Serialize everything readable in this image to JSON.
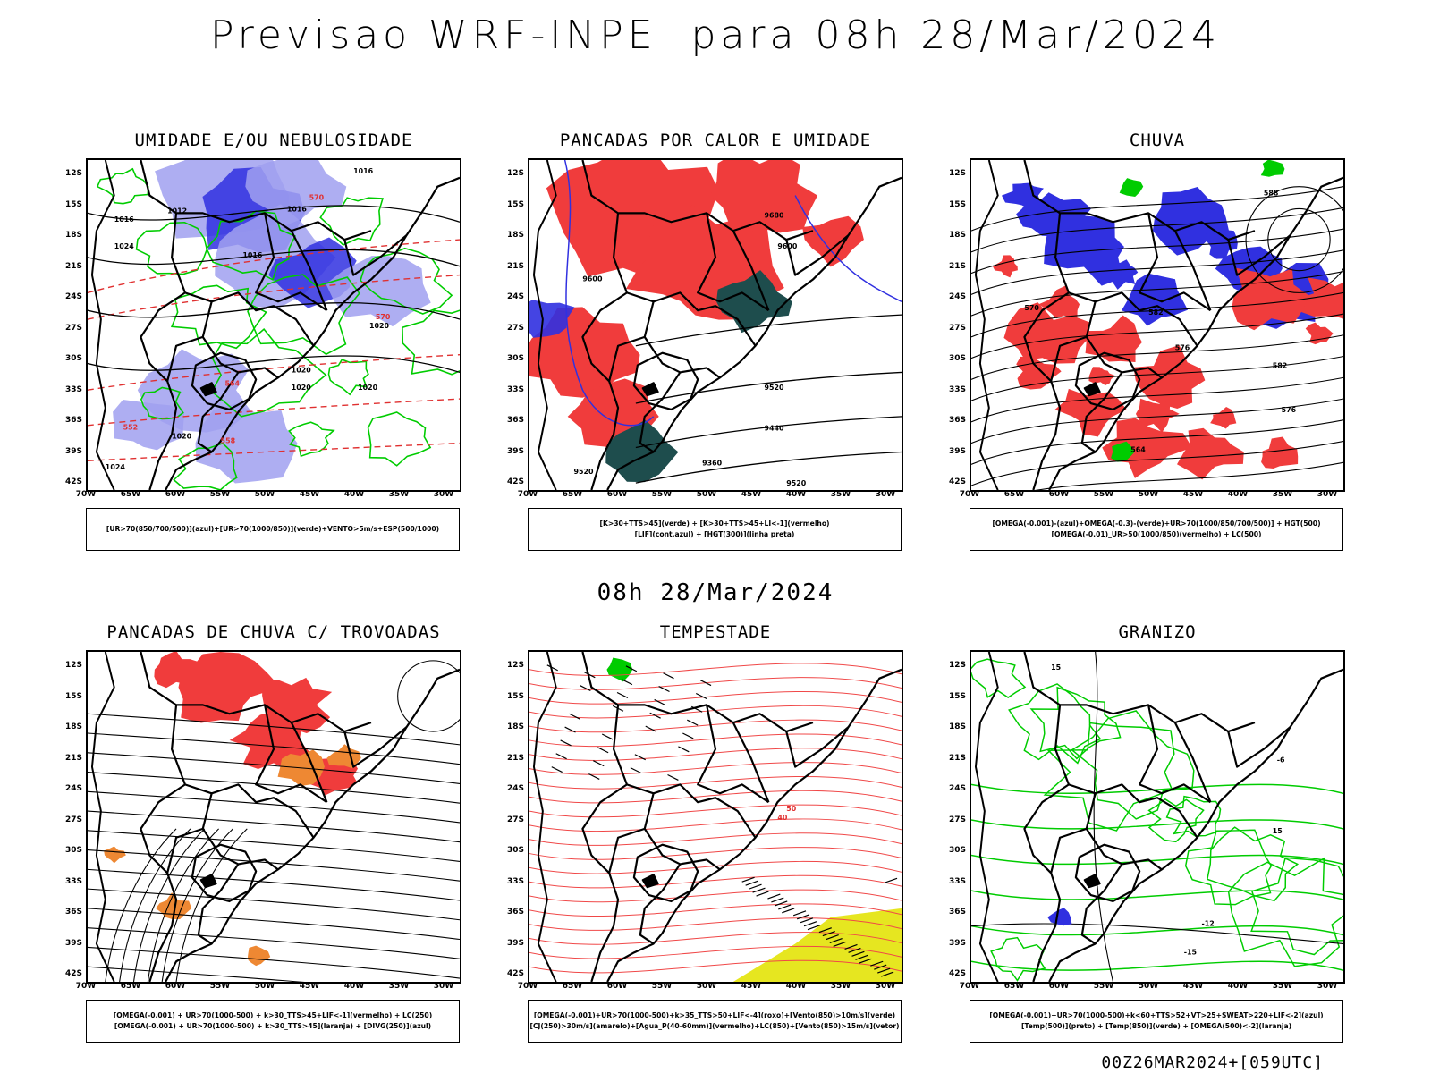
{
  "header": {
    "title": "Previsao WRF-INPE  para 08h 28/Mar/2024"
  },
  "middle": {
    "title": "08h 28/Mar/2024"
  },
  "footer": {
    "run_info": "00Z26MAR2024+[059UTC]"
  },
  "axes": {
    "latitudes": [
      "12S",
      "15S",
      "18S",
      "21S",
      "24S",
      "27S",
      "30S",
      "33S",
      "36S",
      "39S",
      "42S"
    ],
    "longitudes": [
      "70W",
      "65W",
      "60W",
      "55W",
      "50W",
      "45W",
      "40W",
      "35W",
      "30W"
    ]
  },
  "colors": {
    "blue": "#3030e0",
    "light_blue": "#a0a0f0",
    "green": "#00cc00",
    "red": "#f03c3c",
    "dark_teal": "#1e4d4d",
    "orange": "#ee8833",
    "yellow": "#e6e620",
    "black": "#000000"
  },
  "panels": [
    {
      "id": "umidade",
      "title": "UMIDADE E/OU NEBULOSIDADE",
      "legend": [
        "[UR>70(850/700/500)](azul)+[UR>70(1000/850)](verde)+VENTO>5m/s+ESP(500/1000)"
      ],
      "contour_labels": [
        "1016",
        "1012",
        "1016",
        "1016",
        "1016",
        "1024",
        "1020",
        "1020",
        "1020",
        "1020",
        "1020",
        "1024",
        "570",
        "564",
        "558",
        "552",
        "570"
      ]
    },
    {
      "id": "pancadas_calor",
      "title": "PANCADAS POR CALOR E UMIDADE",
      "legend": [
        "[K>30+TTS>45](verde) + [K>30+TTS>45+LI<-1](vermelho)",
        "[LIF](cont.azul) + [HGT(300)](linha preta)"
      ],
      "contour_labels": [
        "9680",
        "9600",
        "9600",
        "9520",
        "9520",
        "9440",
        "9360",
        "9520"
      ]
    },
    {
      "id": "chuva",
      "title": "CHUVA",
      "legend": [
        "[OMEGA(-0.001)-(azul)+OMEGA(-0.3)-(verde)+UR>70(1000/850/700/500)] + HGT(500)",
        "[OMEGA(-0.01)_UR>50(1000/850)(vermelho) + LC(500)"
      ],
      "contour_labels": [
        "588",
        "582",
        "576",
        "570",
        "582",
        "576",
        "564"
      ]
    },
    {
      "id": "pancadas_trovoadas",
      "title": "PANCADAS DE CHUVA C/ TROVOADAS",
      "legend": [
        "[OMEGA(-0.001) + UR>70(1000-500) + k>30_TTS>45+LIF<-1](vermelho) + LC(250)",
        "[OMEGA(-0.001) + UR>70(1000-500) + k>30_TTS>45](laranja) + [DIVG(250)](azul)"
      ],
      "contour_labels": []
    },
    {
      "id": "tempestade",
      "title": "TEMPESTADE",
      "legend": [
        "[OMEGA(-0.001)+UR>70(1000-500)+k>35_TTS>50+LIF<-4](roxo)+[Vento(850)>10m/s](verde)",
        "[CJ(250)>30m/s](amarelo)+[Agua_P(40-60mm)](vermelho)+LC(850)+[Vento(850)>15m/s](vetor)"
      ],
      "contour_labels": [
        "50",
        "40"
      ]
    },
    {
      "id": "granizo",
      "title": "GRANIZO",
      "legend": [
        "[OMEGA(-0.001)+UR>70(1000-500)+k<60+TTS>52+VT>25+SWEAT>220+LIF<-2](azul)",
        "[Temp(500)](preto) + [Temp(850)](verde) + [OMEGA(500)<-2](laranja)"
      ],
      "contour_labels": [
        "15",
        "-6",
        "15",
        "-12",
        "-15"
      ]
    }
  ]
}
